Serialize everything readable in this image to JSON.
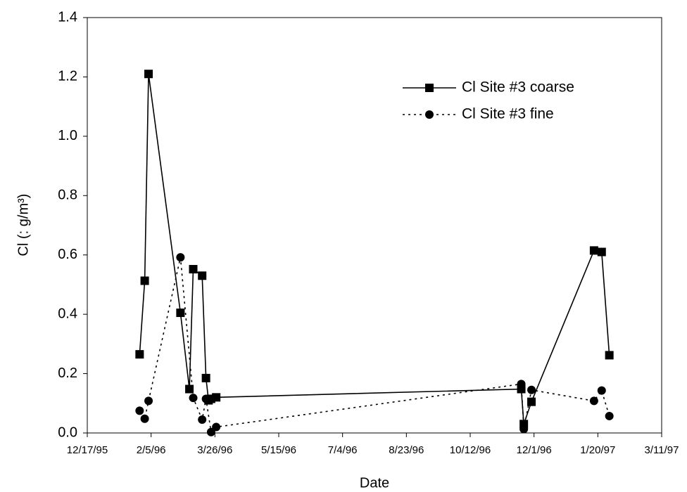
{
  "chart_data": {
    "type": "line",
    "x_label": "Date",
    "y_label": "Cl (: g/m³)",
    "xlim": [
      "12/17/95",
      "3/11/97"
    ],
    "xticks": [
      "12/17/95",
      "2/5/96",
      "3/26/96",
      "5/15/96",
      "7/4/96",
      "8/23/96",
      "10/12/96",
      "12/1/96",
      "1/20/97",
      "3/11/97"
    ],
    "ylim": [
      0,
      1.4
    ],
    "yticks": [
      {
        "value": 0,
        "label": "0.0"
      },
      0.2,
      0.4,
      0.6,
      0.8,
      {
        "value": 1,
        "label": "1.0"
      },
      1.2,
      1.4
    ],
    "legend": "top-right",
    "series": [
      {
        "name": "Cl Site #3 coarse",
        "color": "#000000",
        "line": "solid",
        "marker": "square",
        "x": [
          "1/27/96",
          "1/31/96",
          "2/3/96",
          "2/28/96",
          "3/6/96",
          "3/9/96",
          "3/16/96",
          "3/19/96",
          "3/21/96",
          "3/23/96",
          "3/27/96",
          "11/21/96",
          "11/23/96",
          "11/29/96",
          "1/17/97",
          "1/23/97",
          "1/29/97"
        ],
        "values": [
          0.265,
          0.513,
          1.21,
          0.405,
          0.148,
          0.552,
          0.53,
          0.185,
          0.11,
          0.115,
          0.12,
          0.148,
          0.03,
          0.105,
          0.615,
          0.61,
          0.262
        ]
      },
      {
        "name": "Cl Site #3 fine",
        "color": "#000000",
        "line": "dotted",
        "marker": "circle",
        "x": [
          "1/27/96",
          "1/31/96",
          "2/3/96",
          "2/28/96",
          "3/9/96",
          "3/16/96",
          "3/19/96",
          "3/23/96",
          "3/27/96",
          "11/21/96",
          "11/23/96",
          "11/29/96",
          "1/17/97",
          "1/23/97",
          "1/29/97"
        ],
        "values": [
          0.075,
          0.048,
          0.108,
          0.592,
          0.118,
          0.045,
          0.115,
          0.003,
          0.02,
          0.165,
          0.013,
          0.145,
          0.108,
          0.143,
          0.057
        ]
      }
    ]
  }
}
